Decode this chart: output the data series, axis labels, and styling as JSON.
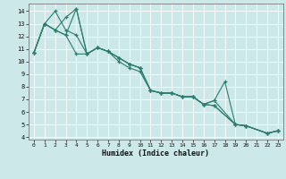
{
  "xlabel": "Humidex (Indice chaleur)",
  "background_color": "#cce8e8",
  "grid_color": "#ffffff",
  "line_color": "#2d7d6e",
  "xlim": [
    -0.5,
    23.5
  ],
  "ylim": [
    3.8,
    14.6
  ],
  "yticks": [
    4,
    5,
    6,
    7,
    8,
    9,
    10,
    11,
    12,
    13,
    14
  ],
  "xticks": [
    0,
    1,
    2,
    3,
    4,
    5,
    6,
    7,
    8,
    9,
    10,
    11,
    12,
    13,
    14,
    15,
    16,
    17,
    18,
    19,
    20,
    21,
    22,
    23
  ],
  "series_x": [
    [
      0,
      1,
      2,
      3,
      4,
      5,
      6,
      7,
      8,
      9,
      10,
      11,
      12,
      13,
      14,
      15,
      16,
      17,
      19,
      20,
      22,
      23
    ],
    [
      0,
      1,
      2,
      3,
      4,
      5,
      6,
      7,
      8,
      9,
      10,
      11,
      12,
      13,
      14,
      15,
      16,
      17,
      18,
      19,
      20,
      22,
      23
    ],
    [
      0,
      1,
      2,
      3,
      4,
      5,
      6,
      7,
      8,
      9,
      10,
      11,
      12,
      13,
      14,
      15,
      16,
      17,
      19,
      20,
      22,
      23
    ],
    [
      0,
      1,
      2,
      3,
      4,
      5,
      6,
      7,
      8,
      9,
      10,
      11,
      12,
      13,
      14,
      15,
      16,
      17,
      19,
      20,
      22,
      23
    ]
  ],
  "series_y": [
    [
      10.7,
      13.0,
      12.5,
      12.1,
      14.2,
      10.6,
      11.1,
      10.8,
      10.3,
      9.8,
      9.5,
      7.7,
      7.5,
      7.5,
      7.2,
      7.2,
      6.6,
      6.9,
      5.0,
      4.9,
      4.3,
      4.5
    ],
    [
      10.7,
      13.0,
      12.5,
      13.5,
      14.2,
      10.6,
      11.1,
      10.8,
      10.3,
      9.8,
      9.5,
      7.7,
      7.5,
      7.5,
      7.2,
      7.2,
      6.6,
      6.9,
      8.4,
      5.0,
      4.9,
      4.3,
      4.5
    ],
    [
      10.7,
      13.0,
      12.5,
      12.1,
      10.6,
      10.6,
      11.1,
      10.8,
      10.3,
      9.8,
      9.5,
      7.7,
      7.5,
      7.5,
      7.2,
      7.2,
      6.6,
      6.5,
      5.0,
      4.9,
      4.3,
      4.5
    ],
    [
      10.7,
      13.0,
      14.0,
      12.5,
      12.1,
      10.6,
      11.1,
      10.8,
      10.0,
      9.5,
      9.2,
      7.7,
      7.5,
      7.5,
      7.2,
      7.2,
      6.6,
      6.5,
      5.0,
      4.9,
      4.3,
      4.5
    ]
  ]
}
